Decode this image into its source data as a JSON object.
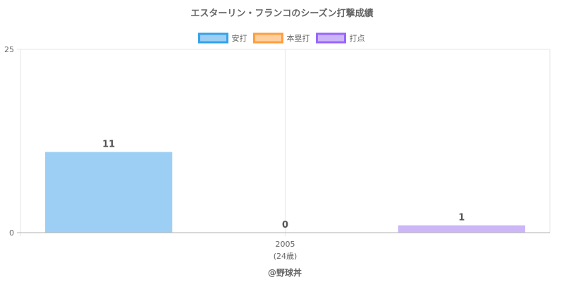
{
  "chart_data": {
    "type": "bar",
    "title": "エスターリン・フランコのシーズン打撃成績",
    "categories": [
      "2005"
    ],
    "category_sublabels": [
      "(24歳)"
    ],
    "series": [
      {
        "name": "安打",
        "values": [
          11
        ],
        "fill": "#9dcff5",
        "stroke": "#36a2eb"
      },
      {
        "name": "本塁打",
        "values": [
          0
        ],
        "fill": "#ffcf9f",
        "stroke": "#ff9f40"
      },
      {
        "name": "打点",
        "values": [
          1
        ],
        "fill": "#cdb6f7",
        "stroke": "#9966ff"
      }
    ],
    "ylim": [
      0,
      25
    ],
    "y_ticks": [
      "0",
      "25"
    ],
    "legend_position": "top",
    "grid": true,
    "data_labels": true
  },
  "credit": "@野球丼"
}
